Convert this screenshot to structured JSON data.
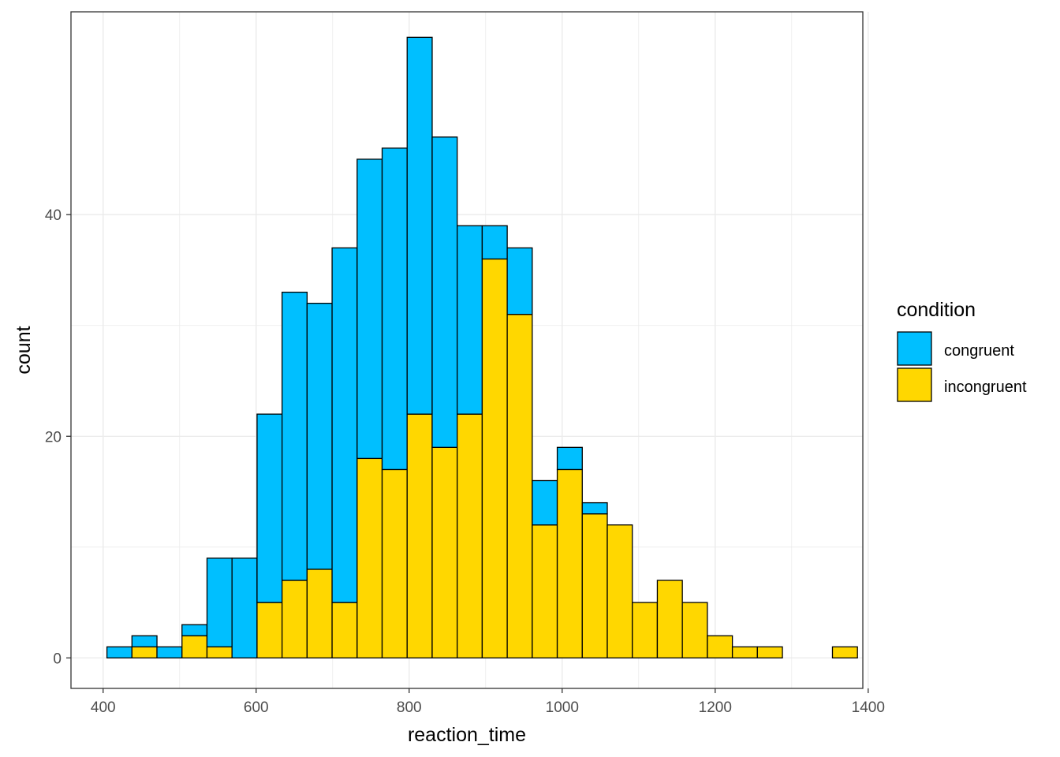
{
  "chart_data": {
    "type": "bar",
    "stacked": true,
    "xlabel": "reaction_time",
    "ylabel": "count",
    "xlim": [
      358,
      1393
    ],
    "ylim": [
      -2.75,
      58.3
    ],
    "x_ticks": [
      400,
      600,
      800,
      1000,
      1200,
      1400
    ],
    "y_ticks": [
      0,
      20,
      40
    ],
    "grid": true,
    "legend": {
      "title": "condition",
      "position": "right",
      "entries": [
        "congruent",
        "incongruent"
      ]
    },
    "bin_width": 32.7,
    "bin_starts": [
      405,
      437.7,
      470.4,
      503.1,
      535.8,
      568.5,
      601.2,
      633.9,
      666.6,
      699.3,
      732,
      764.7,
      797.4,
      830.1,
      862.8,
      895.5,
      928.2,
      960.9,
      993.6,
      1026.3,
      1059,
      1091.7,
      1124.4,
      1157.1,
      1189.8,
      1222.5,
      1255.2,
      1287.9,
      1320.6,
      1353.3
    ],
    "series": [
      {
        "name": "congruent",
        "color": "#00BFFF",
        "values": [
          1,
          1,
          1,
          1,
          8,
          9,
          17,
          26,
          24,
          32,
          27,
          29,
          34,
          28,
          17,
          3,
          6,
          4,
          2,
          1,
          0,
          0,
          0,
          0,
          0,
          0,
          0,
          0,
          0,
          0
        ]
      },
      {
        "name": "incongruent",
        "color": "#FFD700",
        "values": [
          0,
          1,
          0,
          2,
          1,
          0,
          5,
          7,
          8,
          5,
          18,
          17,
          22,
          19,
          22,
          36,
          31,
          12,
          17,
          13,
          12,
          5,
          7,
          5,
          2,
          1,
          1,
          0,
          0,
          1
        ]
      }
    ]
  }
}
